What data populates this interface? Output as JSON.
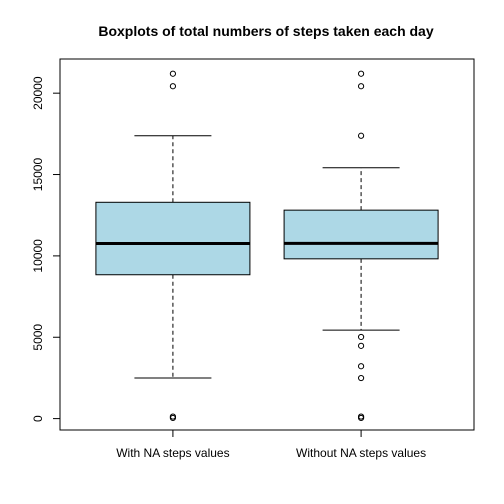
{
  "chart_data": {
    "type": "boxplot",
    "title": "Boxplots of total numbers of steps taken each day",
    "xlabel": "",
    "ylabel": "",
    "categories": [
      "With NA steps values",
      "Without NA steps values"
    ],
    "ylim": [
      -700,
      22100
    ],
    "yticks": [
      0,
      5000,
      10000,
      15000,
      20000
    ],
    "grid": false,
    "colors": {
      "box_fill": "#add8e6",
      "stroke": "#000000"
    },
    "series": [
      {
        "q1": 8841,
        "median": 10765,
        "q3": 13294,
        "whisker_low": 2492,
        "whisker_high": 17382,
        "outliers": [
          41,
          126,
          20427,
          21194
        ]
      },
      {
        "q1": 9819,
        "median": 10766,
        "q3": 12811,
        "whisker_low": 5441,
        "whisker_high": 15420,
        "outliers": [
          41,
          126,
          2492,
          3219,
          4472,
          5018,
          17382,
          20427,
          21194
        ]
      }
    ]
  }
}
